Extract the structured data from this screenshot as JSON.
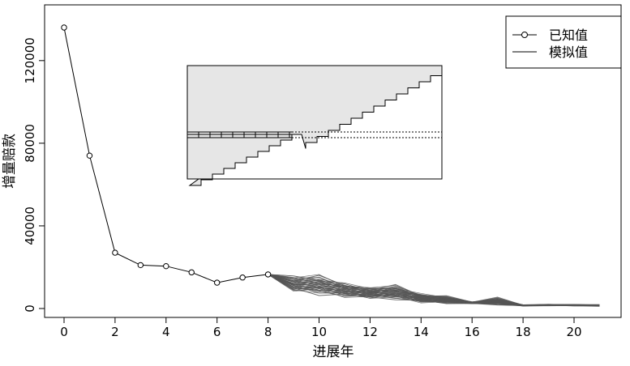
{
  "chart_data": {
    "type": "line",
    "title": "",
    "xlabel": "进展年",
    "ylabel": "增量赔款",
    "xlim": [
      -1,
      22
    ],
    "ylim": [
      -3000,
      140000
    ],
    "x_ticks": [
      0,
      2,
      4,
      6,
      8,
      10,
      12,
      14,
      16,
      18,
      20
    ],
    "y_ticks": [
      0,
      40000,
      80000,
      120000
    ],
    "x_tick_labels": [
      "0",
      "2",
      "4",
      "6",
      "8",
      "10",
      "12",
      "14",
      "16",
      "18",
      "20"
    ],
    "y_tick_labels": [
      "0",
      "40000",
      "80000",
      "120000"
    ],
    "legend": {
      "position": "top-right",
      "entries": [
        {
          "label": "已知值",
          "style": "line-with-open-circles"
        },
        {
          "label": "模拟值",
          "style": "line"
        }
      ]
    },
    "series": [
      {
        "name": "已知值",
        "x": [
          0,
          1,
          2,
          3,
          4,
          5,
          6,
          7,
          8
        ],
        "values": [
          136000,
          74000,
          27000,
          21000,
          20500,
          17500,
          12500,
          15000,
          16500
        ]
      }
    ],
    "simulated": {
      "name": "模拟值",
      "x": [
        8,
        9,
        10,
        11,
        12,
        13,
        14,
        15,
        16,
        17,
        18,
        19,
        20,
        21
      ],
      "median": [
        16500,
        12000,
        11500,
        9000,
        7500,
        8000,
        5000,
        4200,
        2800,
        3500,
        1500,
        1700,
        1600,
        1500
      ],
      "spread": [
        0,
        5000,
        6000,
        4500,
        3500,
        4500,
        2800,
        2400,
        600,
        2500,
        400,
        500,
        500,
        500
      ],
      "n_paths": 36,
      "color": "#555555"
    },
    "inset_color": "#e6e6e6",
    "grid": false
  }
}
